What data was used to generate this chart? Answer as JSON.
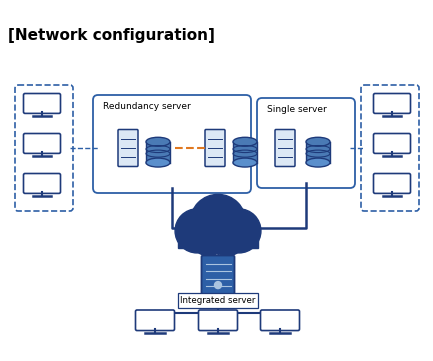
{
  "title": "[Network configuration]",
  "title_fontsize": 11,
  "title_fontweight": "bold",
  "bg_color": "#ffffff",
  "blue_dark": "#1e3a7a",
  "blue_mid": "#2d5fa6",
  "blue_light": "#5a7dc0",
  "orange": "#e07820",
  "redundancy_label": "Redundancy server",
  "single_label": "Single server",
  "integrated_label": "Integrated server",
  "fig_width": 4.33,
  "fig_height": 3.61,
  "dpi": 100
}
